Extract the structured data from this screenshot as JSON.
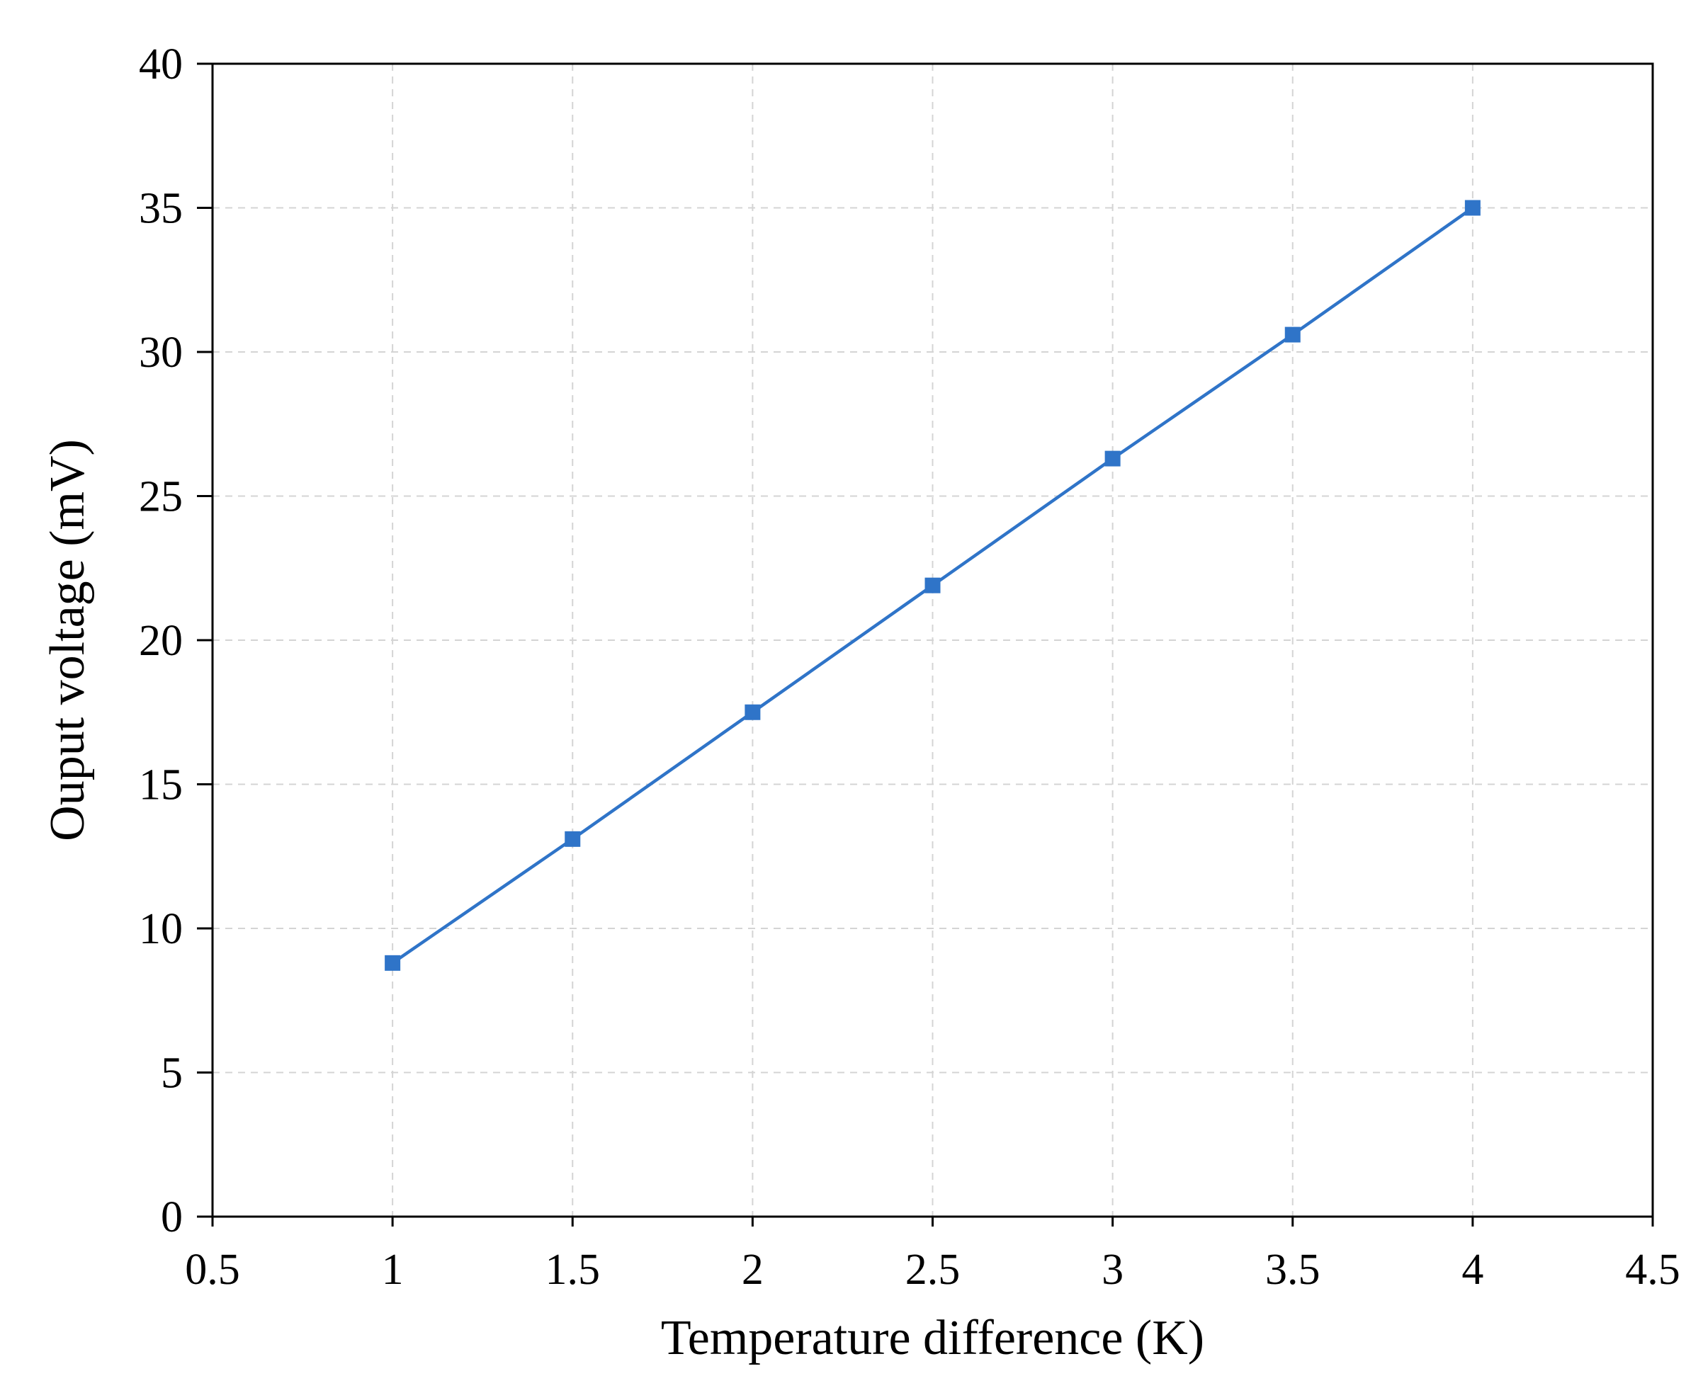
{
  "chart_data": {
    "type": "line",
    "title": "",
    "xlabel": "Temperature difference (K)",
    "ylabel": "Ouput voltage (mV)",
    "xlim": [
      0.5,
      4.5
    ],
    "ylim": [
      0,
      40
    ],
    "x_ticks": [
      0.5,
      1,
      1.5,
      2,
      2.5,
      3,
      3.5,
      4,
      4.5
    ],
    "x_tick_labels": [
      "0.5",
      "1",
      "1.5",
      "2",
      "2.5",
      "3",
      "3.5",
      "4",
      "4.5"
    ],
    "y_ticks": [
      0,
      5,
      10,
      15,
      20,
      25,
      30,
      35,
      40
    ],
    "y_tick_labels": [
      "0",
      "5",
      "10",
      "15",
      "20",
      "25",
      "30",
      "35",
      "40"
    ],
    "grid": true,
    "grid_style": "dashed",
    "legend": "none",
    "marker": "square",
    "series": [
      {
        "color": "#2f74c8",
        "x": [
          1,
          1.5,
          2,
          2.5,
          3,
          3.5,
          4
        ],
        "y": [
          8.8,
          13.1,
          17.5,
          21.9,
          26.3,
          30.6,
          35.0
        ]
      }
    ]
  }
}
